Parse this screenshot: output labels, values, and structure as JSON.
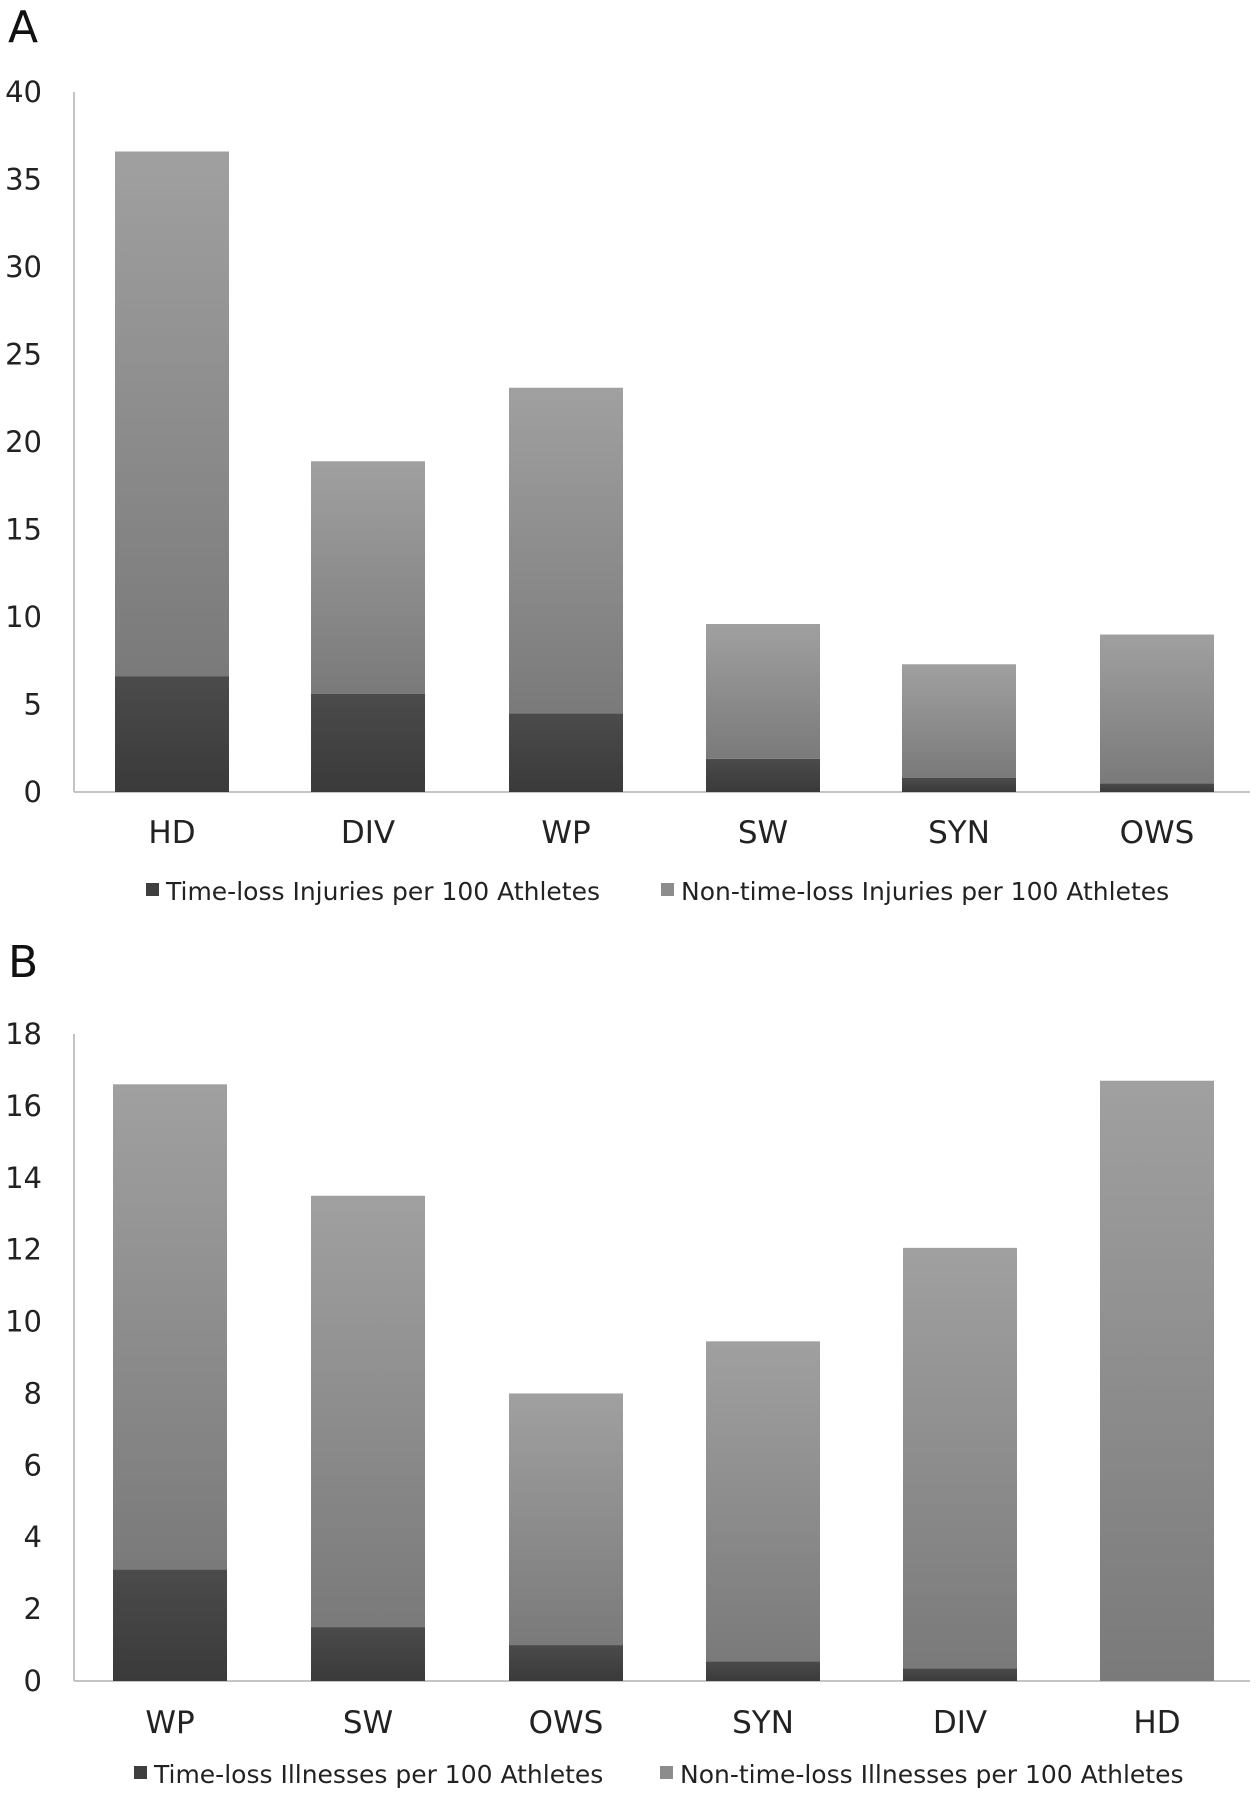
{
  "chart_data": [
    {
      "type": "bar",
      "stacked": true,
      "panel_label": "A",
      "title": "",
      "xlabel": "",
      "ylabel": "",
      "categories": [
        "HD",
        "DIV",
        "WP",
        "SW",
        "SYN",
        "OWS"
      ],
      "ylim": [
        0,
        40
      ],
      "yticks": [
        "0",
        "5",
        "10",
        "15",
        "20",
        "25",
        "30",
        "35",
        "40"
      ],
      "grid": false,
      "legend_position": "bottom",
      "series": [
        {
          "name": "Time-loss Injuries per 100 Athletes",
          "color": "#444444",
          "values": [
            6.6,
            5.6,
            4.5,
            1.9,
            0.8,
            0.5
          ]
        },
        {
          "name": "Non-time-loss Injuries per 100 Athletes",
          "color": "#8c8c8c",
          "values": [
            30.0,
            13.3,
            18.6,
            7.7,
            6.5,
            8.5
          ]
        }
      ]
    },
    {
      "type": "bar",
      "stacked": true,
      "panel_label": "B",
      "title": "",
      "xlabel": "",
      "ylabel": "",
      "categories": [
        "WP",
        "SW",
        "OWS",
        "SYN",
        "DIV",
        "HD"
      ],
      "ylim": [
        0,
        18
      ],
      "yticks": [
        "0",
        "2",
        "4",
        "6",
        "8",
        "10",
        "12",
        "14",
        "16",
        "18"
      ],
      "grid": false,
      "legend_position": "bottom",
      "series": [
        {
          "name": "Time-loss Illnesses per 100 Athletes",
          "color": "#444444",
          "values": [
            3.1,
            1.5,
            1.0,
            0.55,
            0.35,
            0.0
          ]
        },
        {
          "name": "Non-time-loss Illnesses per 100 Athletes",
          "color": "#8c8c8c",
          "values": [
            13.5,
            12.0,
            7.0,
            8.9,
            11.7,
            16.7
          ]
        }
      ]
    }
  ]
}
